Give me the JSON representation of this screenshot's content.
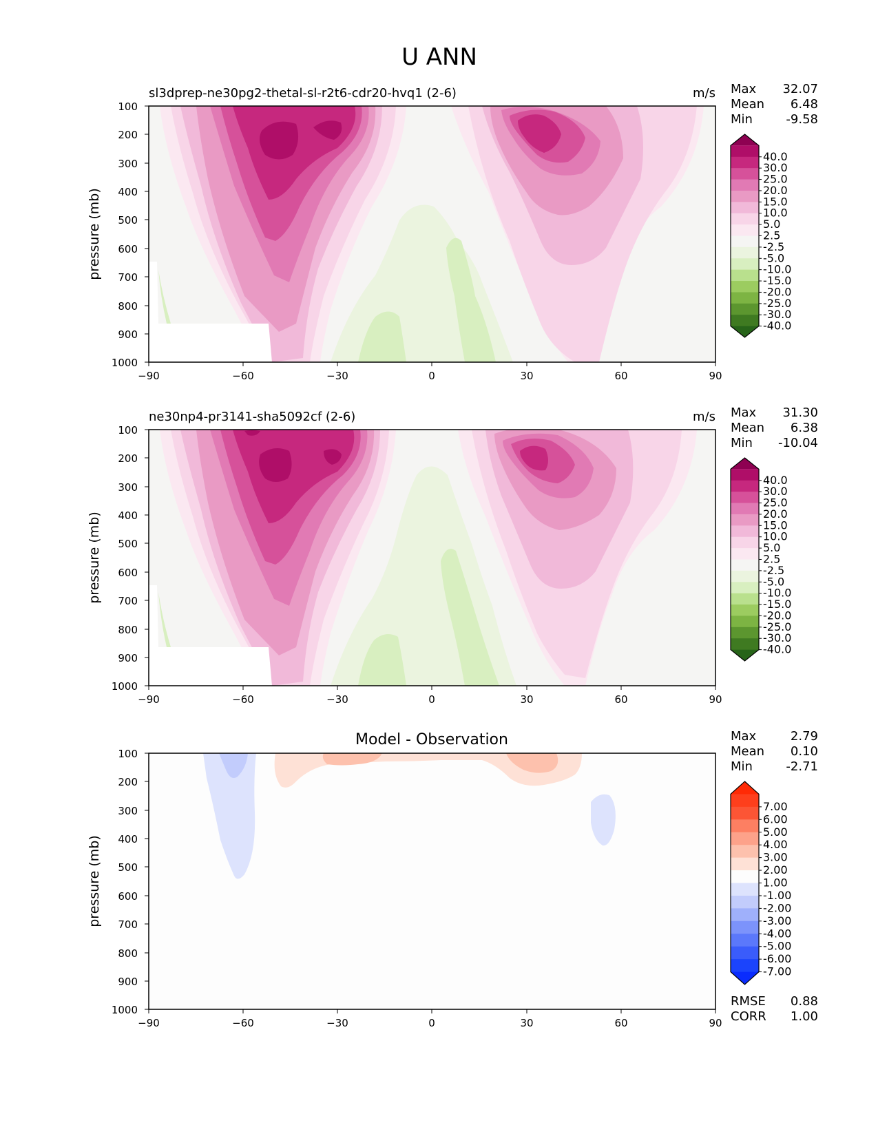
{
  "figure": {
    "title": "U ANN"
  },
  "chart_data": [
    {
      "type": "contour",
      "panel": "test",
      "title": "sl3dprep-ne30pg2-thetal-sl-r2t6-cdr20-hvq1 (2-6)",
      "units": "m/s",
      "ylabel": "pressure (mb)",
      "xlabel": "",
      "x_ticks": [
        "−90",
        "−60",
        "−30",
        "0",
        "30",
        "60",
        "90"
      ],
      "y_ticks": [
        "100",
        "200",
        "300",
        "400",
        "500",
        "600",
        "700",
        "800",
        "900",
        "1000"
      ],
      "xlim": [
        -90,
        90
      ],
      "ylim": [
        1000,
        100
      ],
      "stats": {
        "max_label": "Max",
        "max": "32.07",
        "mean_label": "Mean",
        "mean": "6.48",
        "min_label": "Min",
        "min": "-9.58"
      },
      "colorbar": {
        "levels": [
          "40.0",
          "30.0",
          "25.0",
          "20.0",
          "15.0",
          "10.0",
          "5.0",
          "2.5",
          "-2.5",
          "-5.0",
          "-10.0",
          "-15.0",
          "-20.0",
          "-25.0",
          "-30.0",
          "-40.0"
        ],
        "colors": [
          "#8e0152",
          "#af0e68",
          "#c6287e",
          "#d6519a",
          "#e17ab4",
          "#e99ac4",
          "#f1b9d9",
          "#f8d5e8",
          "#fbe8f1",
          "#f5f5f3",
          "#ebf4df",
          "#d8efc0",
          "#b9e08d",
          "#9ccc60",
          "#7db443",
          "#5c962f",
          "#3f7a21",
          "#276419"
        ]
      }
    },
    {
      "type": "contour",
      "panel": "reference",
      "title": "ne30np4-pr3141-sha5092cf (2-6)",
      "units": "m/s",
      "ylabel": "pressure (mb)",
      "xlabel": "",
      "x_ticks": [
        "−90",
        "−60",
        "−30",
        "0",
        "30",
        "60",
        "90"
      ],
      "y_ticks": [
        "100",
        "200",
        "300",
        "400",
        "500",
        "600",
        "700",
        "800",
        "900",
        "1000"
      ],
      "xlim": [
        -90,
        90
      ],
      "ylim": [
        1000,
        100
      ],
      "stats": {
        "max_label": "Max",
        "max": "31.30",
        "mean_label": "Mean",
        "mean": "6.38",
        "min_label": "Min",
        "min": "-10.04"
      },
      "colorbar": {
        "levels": [
          "40.0",
          "30.0",
          "25.0",
          "20.0",
          "15.0",
          "10.0",
          "5.0",
          "2.5",
          "-2.5",
          "-5.0",
          "-10.0",
          "-15.0",
          "-20.0",
          "-25.0",
          "-30.0",
          "-40.0"
        ],
        "colors": [
          "#8e0152",
          "#af0e68",
          "#c6287e",
          "#d6519a",
          "#e17ab4",
          "#e99ac4",
          "#f1b9d9",
          "#f8d5e8",
          "#fbe8f1",
          "#f5f5f3",
          "#ebf4df",
          "#d8efc0",
          "#b9e08d",
          "#9ccc60",
          "#7db443",
          "#5c962f",
          "#3f7a21",
          "#276419"
        ]
      }
    },
    {
      "type": "contour",
      "panel": "difference",
      "title": "Model - Observation",
      "ylabel": "pressure (mb)",
      "xlabel": "",
      "x_ticks": [
        "−90",
        "−60",
        "−30",
        "0",
        "30",
        "60",
        "90"
      ],
      "y_ticks": [
        "100",
        "200",
        "300",
        "400",
        "500",
        "600",
        "700",
        "800",
        "900",
        "1000"
      ],
      "xlim": [
        -90,
        90
      ],
      "ylim": [
        1000,
        100
      ],
      "stats": {
        "max_label": "Max",
        "max": "2.79",
        "mean_label": "Mean",
        "mean": "0.10",
        "min_label": "Min",
        "min": "-2.71"
      },
      "metrics": {
        "rmse_label": "RMSE",
        "rmse": "0.88",
        "corr_label": "CORR",
        "corr": "1.00"
      },
      "colorbar": {
        "levels": [
          "7.00",
          "6.00",
          "5.00",
          "4.00",
          "3.00",
          "2.00",
          "1.00",
          "-1.00",
          "-2.00",
          "-3.00",
          "-4.00",
          "-5.00",
          "-6.00",
          "-7.00"
        ],
        "colors": [
          "#ff2a05",
          "#fe3f1c",
          "#fc5535",
          "#fd7f62",
          "#fda28a",
          "#fdc1ad",
          "#fee1d6",
          "#fdfdfd",
          "#dde3fd",
          "#c2ccfc",
          "#9fb0fb",
          "#7c93fb",
          "#5b78fb",
          "#3a5cfb",
          "#1b44fc",
          "#0a2cfd"
        ]
      }
    }
  ]
}
